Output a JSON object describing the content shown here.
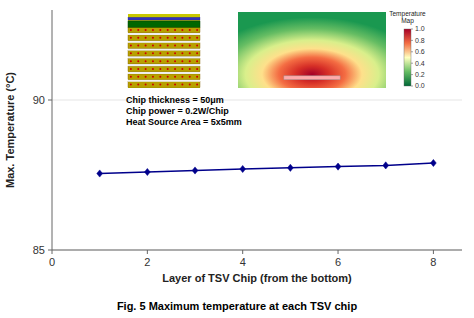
{
  "chart_data": {
    "type": "line",
    "xlabel": "Layer of TSV Chip (from the bottom)",
    "ylabel": "Max. Temperature (°C)",
    "caption": "Fig. 5 Maximum temperature at each TSV chip",
    "x": [
      1,
      2,
      3,
      4,
      5,
      6,
      7,
      8
    ],
    "values": [
      87.55,
      87.6,
      87.65,
      87.7,
      87.74,
      87.78,
      87.82,
      87.9
    ],
    "color": "#00008B",
    "marker": "diamond",
    "xlim": [
      0,
      8.6
    ],
    "ylim": [
      85,
      93
    ],
    "xticks": [
      0,
      2,
      4,
      6,
      8
    ],
    "yticks": [
      85,
      90
    ],
    "annotations": [
      {
        "text": "Chip thickness = 50μm\nChip power = 0.2W/Chip\nHeat Source Area = 5x5mm",
        "x": 1.55,
        "y": 90.2
      }
    ],
    "colorbar": {
      "title": "Temperature\nMap",
      "range": [
        0,
        1
      ],
      "ticks": [
        {
          "value": 0,
          "label": "0.0"
        },
        {
          "value": 0.2,
          "label": "0.2"
        },
        {
          "value": 0.4,
          "label": "0.4"
        },
        {
          "value": 0.6,
          "label": "0.6"
        },
        {
          "value": 0.8,
          "label": "0.8"
        },
        {
          "value": 1,
          "label": "1.0"
        }
      ]
    }
  }
}
